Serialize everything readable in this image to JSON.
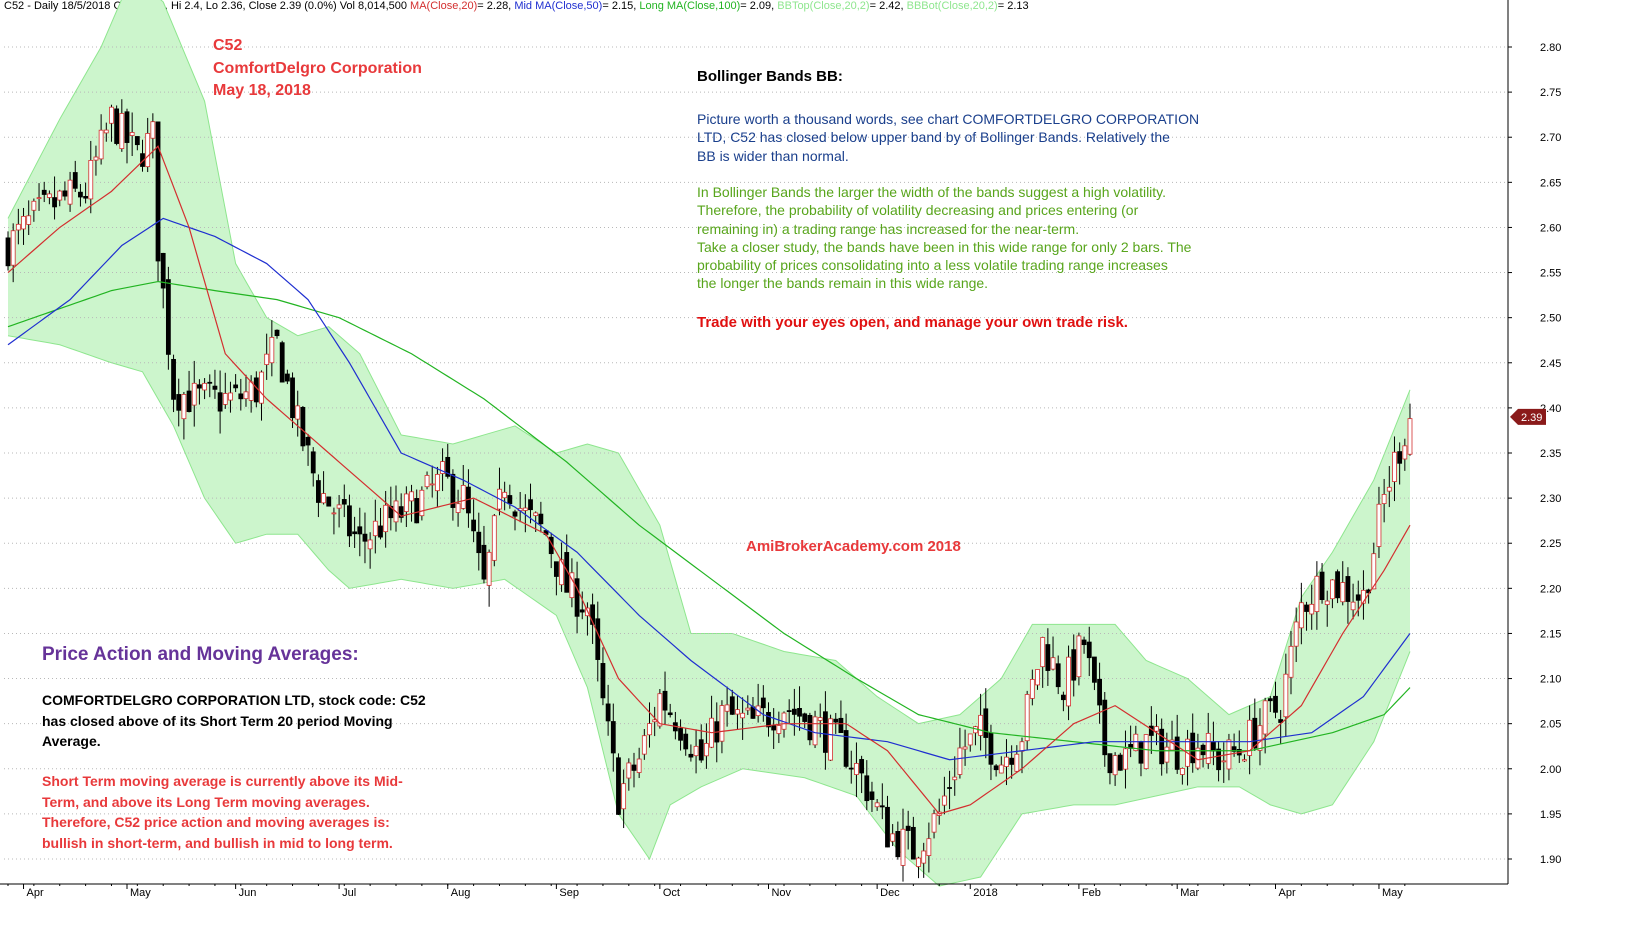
{
  "header": {
    "symbol_info": "C52 - Daily 18/5/2018 Open 2.39, Hi 2.4, Lo 2.36, Close 2.39 (0.0%) Vol 8,014,500",
    "ma20": {
      "label": "MA(Close,20)",
      "value": "= 2.28,",
      "color": "#d32f2f"
    },
    "ma50": {
      "label": "Mid MA(Close,50)",
      "value": "= 2.15,",
      "color": "#1f2fd0"
    },
    "ma100": {
      "label": "Long MA(Close,100)",
      "value": "= 2.09,",
      "color": "#22b422"
    },
    "bbtop": {
      "label": "BBTop(Close,20,2)",
      "value": "= 2.42,",
      "color": "#8ee68e"
    },
    "bbbot": {
      "label": "BBBot(Close,20,2)",
      "value": "= 2.13",
      "color": "#8ee68e"
    }
  },
  "overlay": {
    "symbol": "C52",
    "company": "ComfortDelgro Corporation",
    "date": "May 18, 2018",
    "bb_title": "Bollinger Bands BB:",
    "bb_blue": [
      "Picture worth a thousand words, see chart COMFORTDELGRO CORPORATION",
      "LTD, C52 has closed below upper band by of  Bollinger Bands.  Relatively the",
      "BB is wider than normal."
    ],
    "bb_green": [
      "In Bollinger Bands the larger the width of the bands suggest a high volatility.",
      "Therefore, the probability of volatility decreasing and prices entering (or",
      "remaining in) a trading range has increased for the near-term.",
      "Take a closer study, the bands have been in this wide range for only  2 bars. The",
      "probability of prices consolidating into a less volatile trading range increases",
      "the longer the bands remain in this wide range."
    ],
    "warning": "Trade with your eyes open, and manage your own trade risk.",
    "watermark": "AmiBrokerAcademy.com   2018",
    "pa_title": "Price Action and Moving Averages:",
    "pa_black": [
      "COMFORTDELGRO CORPORATION LTD, stock code: C52",
      "has closed above of its Short Term 20 period Moving",
      "Average."
    ],
    "pa_red": [
      "Short Term moving average is currently above its Mid-",
      "Term, and above its Long Term moving averages.",
      "Therefore,  C52 price action and moving averages is:",
      "bullish in short-term, and bullish in mid to long term."
    ]
  },
  "chart_data": {
    "type": "candlestick",
    "colors": {
      "up": "#ffffff",
      "down": "#000000",
      "ma20": "#d32f2f",
      "ma50": "#1f2fd0",
      "ma100": "#22b422",
      "band_fill": "#ccf5cc",
      "band_line": "#8ee68e"
    },
    "y_axis": {
      "ylim": [
        1.88,
        2.82
      ],
      "ticks": [
        "2.80",
        "2.75",
        "2.70",
        "2.65",
        "2.60",
        "2.55",
        "2.50",
        "2.45",
        "2.40",
        "2.35",
        "2.30",
        "2.25",
        "2.20",
        "2.15",
        "2.10",
        "2.05",
        "2.00",
        "1.95",
        "1.90"
      ],
      "last_price_label": "2.39",
      "last_price": 2.39
    },
    "x_axis": {
      "bars": 272,
      "month_labels": [
        {
          "label": "Apr",
          "bar": 3
        },
        {
          "label": "May",
          "bar": 23
        },
        {
          "label": "Jun",
          "bar": 44
        },
        {
          "label": "Jul",
          "bar": 64
        },
        {
          "label": "Aug",
          "bar": 85
        },
        {
          "label": "Sep",
          "bar": 106
        },
        {
          "label": "Oct",
          "bar": 126
        },
        {
          "label": "Nov",
          "bar": 147
        },
        {
          "label": "Dec",
          "bar": 168
        },
        {
          "label": "2018",
          "bar": 186
        },
        {
          "label": "Feb",
          "bar": 207
        },
        {
          "label": "Mar",
          "bar": 226
        },
        {
          "label": "Apr",
          "bar": 245
        },
        {
          "label": "May",
          "bar": 265
        }
      ]
    },
    "close_anchors": [
      [
        0,
        2.58
      ],
      [
        5,
        2.61
      ],
      [
        10,
        2.63
      ],
      [
        15,
        2.64
      ],
      [
        20,
        2.72
      ],
      [
        25,
        2.68
      ],
      [
        28,
        2.7
      ],
      [
        29,
        2.58
      ],
      [
        32,
        2.42
      ],
      [
        36,
        2.41
      ],
      [
        40,
        2.41
      ],
      [
        44,
        2.41
      ],
      [
        48,
        2.42
      ],
      [
        52,
        2.47
      ],
      [
        56,
        2.38
      ],
      [
        60,
        2.31
      ],
      [
        64,
        2.28
      ],
      [
        68,
        2.25
      ],
      [
        72,
        2.27
      ],
      [
        78,
        2.29
      ],
      [
        84,
        2.32
      ],
      [
        88,
        2.3
      ],
      [
        92,
        2.2
      ],
      [
        96,
        2.32
      ],
      [
        100,
        2.28
      ],
      [
        104,
        2.26
      ],
      [
        108,
        2.2
      ],
      [
        112,
        2.18
      ],
      [
        115,
        2.07
      ],
      [
        118,
        1.97
      ],
      [
        122,
        2.01
      ],
      [
        126,
        2.08
      ],
      [
        130,
        2.05
      ],
      [
        134,
        2.01
      ],
      [
        138,
        2.06
      ],
      [
        144,
        2.05
      ],
      [
        150,
        2.07
      ],
      [
        156,
        2.05
      ],
      [
        162,
        2.02
      ],
      [
        166,
        1.98
      ],
      [
        170,
        1.93
      ],
      [
        175,
        1.91
      ],
      [
        180,
        1.95
      ],
      [
        184,
        2.02
      ],
      [
        188,
        2.04
      ],
      [
        192,
        2.01
      ],
      [
        196,
        2.04
      ],
      [
        200,
        2.14
      ],
      [
        204,
        2.09
      ],
      [
        208,
        2.14
      ],
      [
        212,
        2.02
      ],
      [
        216,
        2.01
      ],
      [
        220,
        2.03
      ],
      [
        226,
        2.02
      ],
      [
        230,
        2.03
      ],
      [
        234,
        2.01
      ],
      [
        238,
        2.02
      ],
      [
        242,
        2.05
      ],
      [
        246,
        2.07
      ],
      [
        250,
        2.18
      ],
      [
        254,
        2.21
      ],
      [
        258,
        2.2
      ],
      [
        262,
        2.19
      ],
      [
        266,
        2.3
      ],
      [
        268,
        2.34
      ],
      [
        271,
        2.39
      ]
    ],
    "ma20": [
      [
        0,
        2.55
      ],
      [
        10,
        2.6
      ],
      [
        20,
        2.64
      ],
      [
        29,
        2.69
      ],
      [
        35,
        2.6
      ],
      [
        42,
        2.46
      ],
      [
        50,
        2.41
      ],
      [
        58,
        2.37
      ],
      [
        66,
        2.33
      ],
      [
        76,
        2.28
      ],
      [
        90,
        2.3
      ],
      [
        104,
        2.26
      ],
      [
        110,
        2.2
      ],
      [
        118,
        2.1
      ],
      [
        126,
        2.05
      ],
      [
        136,
        2.04
      ],
      [
        150,
        2.05
      ],
      [
        162,
        2.05
      ],
      [
        170,
        2.02
      ],
      [
        180,
        1.95
      ],
      [
        186,
        1.96
      ],
      [
        196,
        2.0
      ],
      [
        206,
        2.05
      ],
      [
        214,
        2.07
      ],
      [
        222,
        2.04
      ],
      [
        230,
        2.01
      ],
      [
        240,
        2.02
      ],
      [
        250,
        2.07
      ],
      [
        258,
        2.15
      ],
      [
        266,
        2.22
      ],
      [
        271,
        2.27
      ]
    ],
    "ma50": [
      [
        0,
        2.47
      ],
      [
        12,
        2.52
      ],
      [
        22,
        2.58
      ],
      [
        30,
        2.61
      ],
      [
        40,
        2.59
      ],
      [
        50,
        2.56
      ],
      [
        58,
        2.52
      ],
      [
        66,
        2.45
      ],
      [
        76,
        2.35
      ],
      [
        88,
        2.32
      ],
      [
        98,
        2.29
      ],
      [
        110,
        2.24
      ],
      [
        122,
        2.17
      ],
      [
        132,
        2.12
      ],
      [
        146,
        2.06
      ],
      [
        156,
        2.04
      ],
      [
        170,
        2.03
      ],
      [
        182,
        2.01
      ],
      [
        196,
        2.02
      ],
      [
        210,
        2.03
      ],
      [
        226,
        2.03
      ],
      [
        240,
        2.03
      ],
      [
        252,
        2.04
      ],
      [
        262,
        2.08
      ],
      [
        271,
        2.15
      ]
    ],
    "ma100": [
      [
        0,
        2.49
      ],
      [
        10,
        2.51
      ],
      [
        20,
        2.53
      ],
      [
        29,
        2.54
      ],
      [
        40,
        2.53
      ],
      [
        52,
        2.52
      ],
      [
        64,
        2.5
      ],
      [
        78,
        2.46
      ],
      [
        92,
        2.41
      ],
      [
        108,
        2.34
      ],
      [
        122,
        2.27
      ],
      [
        136,
        2.21
      ],
      [
        150,
        2.15
      ],
      [
        164,
        2.1
      ],
      [
        176,
        2.06
      ],
      [
        190,
        2.04
      ],
      [
        206,
        2.03
      ],
      [
        222,
        2.02
      ],
      [
        240,
        2.02
      ],
      [
        256,
        2.04
      ],
      [
        266,
        2.06
      ],
      [
        271,
        2.09
      ]
    ],
    "bb_top": [
      [
        0,
        2.61
      ],
      [
        10,
        2.72
      ],
      [
        18,
        2.8
      ],
      [
        24,
        2.88
      ],
      [
        30,
        2.85
      ],
      [
        38,
        2.74
      ],
      [
        44,
        2.56
      ],
      [
        50,
        2.5
      ],
      [
        56,
        2.48
      ],
      [
        62,
        2.49
      ],
      [
        68,
        2.46
      ],
      [
        76,
        2.37
      ],
      [
        86,
        2.36
      ],
      [
        98,
        2.38
      ],
      [
        106,
        2.35
      ],
      [
        112,
        2.36
      ],
      [
        118,
        2.35
      ],
      [
        126,
        2.27
      ],
      [
        132,
        2.15
      ],
      [
        140,
        2.15
      ],
      [
        150,
        2.13
      ],
      [
        160,
        2.12
      ],
      [
        168,
        2.08
      ],
      [
        176,
        2.05
      ],
      [
        184,
        2.06
      ],
      [
        192,
        2.1
      ],
      [
        198,
        2.16
      ],
      [
        206,
        2.16
      ],
      [
        214,
        2.16
      ],
      [
        220,
        2.12
      ],
      [
        228,
        2.1
      ],
      [
        236,
        2.06
      ],
      [
        244,
        2.08
      ],
      [
        250,
        2.19
      ],
      [
        256,
        2.24
      ],
      [
        264,
        2.32
      ],
      [
        271,
        2.42
      ]
    ],
    "bb_bot": [
      [
        0,
        2.48
      ],
      [
        10,
        2.47
      ],
      [
        20,
        2.45
      ],
      [
        26,
        2.44
      ],
      [
        32,
        2.38
      ],
      [
        38,
        2.3
      ],
      [
        44,
        2.25
      ],
      [
        50,
        2.26
      ],
      [
        56,
        2.26
      ],
      [
        62,
        2.22
      ],
      [
        66,
        2.2
      ],
      [
        76,
        2.21
      ],
      [
        86,
        2.2
      ],
      [
        96,
        2.21
      ],
      [
        106,
        2.17
      ],
      [
        112,
        2.09
      ],
      [
        118,
        1.95
      ],
      [
        124,
        1.9
      ],
      [
        128,
        1.96
      ],
      [
        134,
        1.98
      ],
      [
        142,
        2.0
      ],
      [
        154,
        1.99
      ],
      [
        164,
        1.97
      ],
      [
        172,
        1.91
      ],
      [
        180,
        1.87
      ],
      [
        188,
        1.88
      ],
      [
        196,
        1.95
      ],
      [
        206,
        1.96
      ],
      [
        214,
        1.96
      ],
      [
        222,
        1.97
      ],
      [
        230,
        1.98
      ],
      [
        238,
        1.98
      ],
      [
        244,
        1.96
      ],
      [
        250,
        1.95
      ],
      [
        256,
        1.96
      ],
      [
        264,
        2.03
      ],
      [
        271,
        2.13
      ]
    ]
  }
}
